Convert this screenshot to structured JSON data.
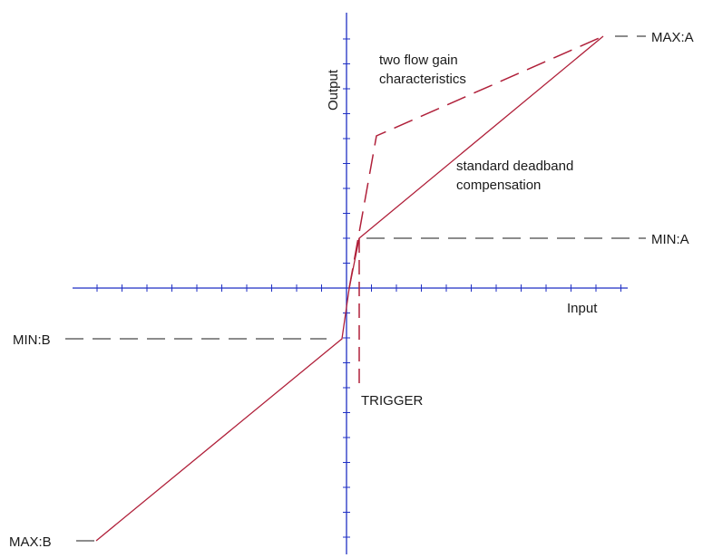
{
  "labels": {
    "output": "Output",
    "input": "Input",
    "two_flow_line1": "two flow gain",
    "two_flow_line2": "characteristics",
    "standard_line1": "standard deadband",
    "standard_line2": "compensation",
    "max_a": "MAX:A",
    "min_a": "MIN:A",
    "min_b": "MIN:B",
    "max_b": "MAX:B",
    "trigger": "TRIGGER"
  },
  "colors": {
    "axis": "#1f2fc4",
    "curve": "#b0203a",
    "guide": "#1a1a1a",
    "text": "#1a1a1a"
  }
}
